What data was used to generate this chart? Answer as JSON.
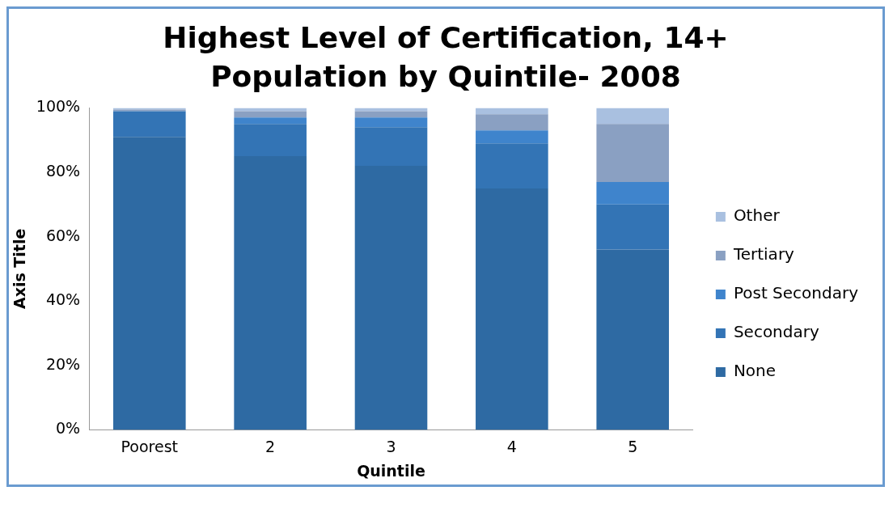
{
  "chart_data": {
    "type": "bar",
    "title": "Highest Level of  Certification, 14+ Population by Quintile- 2008",
    "xlabel": "Quintile",
    "ylabel": "Axis Title",
    "categories": [
      "Poorest",
      "2",
      "3",
      "4",
      "5"
    ],
    "stacked": true,
    "legend": "right",
    "ylim": [
      0,
      100
    ],
    "yticks": [
      {
        "value": 0,
        "label": "0%"
      },
      {
        "value": 20,
        "label": "20%"
      },
      {
        "value": 40,
        "label": "40%"
      },
      {
        "value": 60,
        "label": "60%"
      },
      {
        "value": 80,
        "label": "80%"
      },
      {
        "value": 100,
        "label": "100%"
      }
    ],
    "series": [
      {
        "name": "None",
        "color": "#2e6aa3",
        "values": [
          91,
          85,
          82,
          75,
          56
        ]
      },
      {
        "name": "Secondary",
        "color": "#3374b5",
        "values": [
          8,
          10,
          12,
          14,
          14
        ]
      },
      {
        "name": "Post Secondary",
        "color": "#3f84cc",
        "values": [
          0,
          2,
          3,
          4,
          7
        ]
      },
      {
        "name": "Tertiary",
        "color": "#8aa0c2",
        "values": [
          0.5,
          2,
          2,
          5,
          18
        ]
      },
      {
        "name": "Other",
        "color": "#a9c0e0",
        "values": [
          0.5,
          1,
          1,
          2,
          5
        ]
      }
    ]
  }
}
